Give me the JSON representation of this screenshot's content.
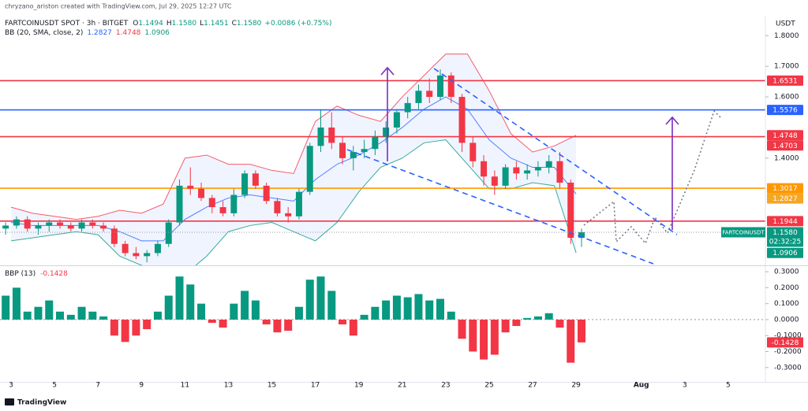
{
  "header": "chryzano_ariston created with TradingView.com, Jul 29, 2025 12:27 UTC",
  "footer": "TradingView",
  "chart_data": [
    {
      "type": "candlestick",
      "title": "FARTCOINUSDT SPOT · 3h · BITGET",
      "ohlc_legend": [
        [
          "O",
          "1.1494"
        ],
        [
          "H",
          "1.1580"
        ],
        [
          "L",
          "1.1451"
        ],
        [
          "C",
          "1.1580"
        ]
      ],
      "change": "+0.0086 (+0.75%)",
      "currency": "USDT",
      "up_color": "#089981",
      "down_color": "#f23645",
      "xlim": [
        2.49,
        37.71
      ],
      "xticks": [
        3,
        5,
        7,
        9,
        11,
        13,
        15,
        17,
        19,
        21,
        23,
        25,
        27,
        29,
        {
          "value": 32,
          "label": "Aug"
        },
        {
          "value": 34,
          "label": "3"
        },
        {
          "value": 36,
          "label": "5"
        }
      ],
      "ylim": [
        1.05,
        1.865
      ],
      "yticks": [
        {
          "value": 1.4,
          "label": "1.4000"
        },
        {
          "value": 1.6,
          "label": "1.6000"
        },
        {
          "value": 1.7,
          "label": "1.7000"
        },
        {
          "value": 1.8,
          "label": "1.8000"
        }
      ],
      "x": [
        2.75,
        3.25,
        3.75,
        4.25,
        4.75,
        5.25,
        5.75,
        6.25,
        6.75,
        7.25,
        7.75,
        8.25,
        8.75,
        9.25,
        9.75,
        10.25,
        10.75,
        11.25,
        11.75,
        12.25,
        12.75,
        13.25,
        13.75,
        14.25,
        14.75,
        15.25,
        15.75,
        16.25,
        16.75,
        17.25,
        17.75,
        18.25,
        18.75,
        19.25,
        19.75,
        20.25,
        20.75,
        21.25,
        21.75,
        22.25,
        22.75,
        23.25,
        23.75,
        24.25,
        24.75,
        25.25,
        25.75,
        26.25,
        26.75,
        27.25,
        27.75,
        28.25,
        28.75,
        29.25
      ],
      "open": [
        1.17,
        1.18,
        1.2,
        1.17,
        1.18,
        1.19,
        1.18,
        1.17,
        1.19,
        1.18,
        1.17,
        1.12,
        1.09,
        1.08,
        1.09,
        1.12,
        1.19,
        1.31,
        1.3,
        1.27,
        1.24,
        1.22,
        1.28,
        1.35,
        1.31,
        1.26,
        1.22,
        1.21,
        1.29,
        1.44,
        1.5,
        1.45,
        1.4,
        1.42,
        1.43,
        1.47,
        1.5,
        1.55,
        1.58,
        1.62,
        1.6,
        1.67,
        1.6,
        1.45,
        1.39,
        1.34,
        1.31,
        1.37,
        1.35,
        1.36,
        1.37,
        1.39,
        1.32,
        1.14
      ],
      "high": [
        1.19,
        1.21,
        1.21,
        1.19,
        1.2,
        1.2,
        1.19,
        1.2,
        1.2,
        1.19,
        1.18,
        1.13,
        1.11,
        1.1,
        1.13,
        1.2,
        1.33,
        1.37,
        1.32,
        1.28,
        1.26,
        1.3,
        1.36,
        1.36,
        1.32,
        1.27,
        1.24,
        1.3,
        1.45,
        1.56,
        1.55,
        1.47,
        1.44,
        1.46,
        1.49,
        1.52,
        1.56,
        1.6,
        1.64,
        1.66,
        1.69,
        1.68,
        1.61,
        1.47,
        1.41,
        1.36,
        1.38,
        1.39,
        1.38,
        1.39,
        1.41,
        1.42,
        1.33,
        1.17
      ],
      "low": [
        1.15,
        1.17,
        1.16,
        1.15,
        1.16,
        1.17,
        1.16,
        1.16,
        1.17,
        1.16,
        1.11,
        1.08,
        1.07,
        1.06,
        1.08,
        1.11,
        1.18,
        1.28,
        1.26,
        1.22,
        1.21,
        1.21,
        1.27,
        1.3,
        1.25,
        1.21,
        1.19,
        1.2,
        1.28,
        1.42,
        1.43,
        1.38,
        1.36,
        1.4,
        1.41,
        1.45,
        1.48,
        1.53,
        1.56,
        1.58,
        1.59,
        1.58,
        1.42,
        1.37,
        1.31,
        1.28,
        1.3,
        1.33,
        1.33,
        1.34,
        1.35,
        1.3,
        1.12,
        1.11
      ],
      "close": [
        1.18,
        1.2,
        1.17,
        1.18,
        1.19,
        1.18,
        1.17,
        1.19,
        1.18,
        1.17,
        1.12,
        1.09,
        1.08,
        1.09,
        1.12,
        1.19,
        1.31,
        1.3,
        1.27,
        1.24,
        1.22,
        1.28,
        1.35,
        1.31,
        1.26,
        1.22,
        1.21,
        1.29,
        1.44,
        1.5,
        1.45,
        1.4,
        1.42,
        1.43,
        1.47,
        1.5,
        1.55,
        1.58,
        1.62,
        1.6,
        1.67,
        1.6,
        1.45,
        1.39,
        1.34,
        1.31,
        1.37,
        1.35,
        1.36,
        1.37,
        1.39,
        1.32,
        1.14,
        1.158
      ],
      "bands": {
        "name": "BB (20, SMA, close, 2)",
        "x": [
          3,
          4,
          5,
          6,
          7,
          8,
          9,
          10,
          11,
          12,
          13,
          14,
          15,
          16,
          17,
          18,
          19,
          20,
          21,
          22,
          23,
          24,
          25,
          26,
          27,
          28,
          29
        ],
        "upper": [
          1.24,
          1.22,
          1.21,
          1.2,
          1.21,
          1.23,
          1.22,
          1.25,
          1.4,
          1.41,
          1.38,
          1.38,
          1.36,
          1.35,
          1.52,
          1.57,
          1.54,
          1.52,
          1.6,
          1.67,
          1.74,
          1.74,
          1.62,
          1.48,
          1.42,
          1.44,
          1.4748
        ],
        "middle": [
          1.19,
          1.18,
          1.18,
          1.18,
          1.18,
          1.16,
          1.13,
          1.13,
          1.2,
          1.24,
          1.27,
          1.28,
          1.27,
          1.26,
          1.33,
          1.38,
          1.41,
          1.45,
          1.5,
          1.56,
          1.6,
          1.56,
          1.46,
          1.4,
          1.37,
          1.37,
          1.2827
        ],
        "lower": [
          1.13,
          1.14,
          1.15,
          1.16,
          1.15,
          1.08,
          1.05,
          1.03,
          1.02,
          1.08,
          1.16,
          1.18,
          1.19,
          1.16,
          1.13,
          1.19,
          1.29,
          1.37,
          1.4,
          1.45,
          1.46,
          1.38,
          1.3,
          1.3,
          1.32,
          1.31,
          1.0906
        ],
        "upper_color": "#f23645",
        "middle_color": "#2962ff",
        "lower_color": "#089981",
        "fill": "#2962ff"
      },
      "tags": [
        {
          "value": 1.6531,
          "label": "1.6531",
          "color": "#f23645",
          "line": true
        },
        {
          "value": 1.5576,
          "label": "1.5576",
          "color": "#2962ff",
          "line": true
        },
        {
          "value": 1.4748,
          "label": "1.4748",
          "color": "#f23645",
          "line": false
        },
        {
          "value": 1.4703,
          "label": "1.4703",
          "color": "#f23645",
          "line": true
        },
        {
          "value": 1.3017,
          "label": "1.3017",
          "color": "#ff9800",
          "line": true
        },
        {
          "value": 1.2827,
          "label": "1.2827",
          "color": "#f5a623",
          "line": false
        },
        {
          "value": 1.1944,
          "label": "1.1944",
          "color": "#f23645",
          "line": true
        },
        {
          "value": 1.0906,
          "label": "1.0906",
          "color": "#089981",
          "line": false
        }
      ],
      "last": {
        "value": 1.158,
        "label": "1.1580",
        "symbol": "FARTCOINUSDT",
        "countdown": "02:32:25",
        "color": "#089981"
      }
    },
    {
      "type": "bar",
      "title": "BBP (13)",
      "pos_color": "#089981",
      "neg_color": "#f23645",
      "xlim": [
        2.49,
        37.71
      ],
      "ylim": [
        -0.39,
        0.335
      ],
      "yticks": [
        {
          "value": 0.3,
          "label": "0.3000"
        },
        {
          "value": 0.2,
          "label": "0.2000"
        },
        {
          "value": 0.1,
          "label": "0.1000"
        },
        {
          "value": 0,
          "label": "0.0000"
        },
        {
          "value": -0.1,
          "label": "-0.1000"
        },
        {
          "value": -0.2,
          "label": "-0.2000"
        },
        {
          "value": -0.3,
          "label": "-0.3000"
        }
      ],
      "x": [
        2.75,
        3.25,
        3.75,
        4.25,
        4.75,
        5.25,
        5.75,
        6.25,
        6.75,
        7.25,
        7.75,
        8.25,
        8.75,
        9.25,
        9.75,
        10.25,
        10.75,
        11.25,
        11.75,
        12.25,
        12.75,
        13.25,
        13.75,
        14.25,
        14.75,
        15.25,
        15.75,
        16.25,
        16.75,
        17.25,
        17.75,
        18.25,
        18.75,
        19.25,
        19.75,
        20.25,
        20.75,
        21.25,
        21.75,
        22.25,
        22.75,
        23.25,
        23.75,
        24.25,
        24.75,
        25.25,
        25.75,
        26.25,
        26.75,
        27.25,
        27.75,
        28.25,
        28.75,
        29.25
      ],
      "values": [
        0.15,
        0.2,
        0.05,
        0.08,
        0.12,
        0.05,
        0.03,
        0.08,
        0.05,
        0.02,
        -0.1,
        -0.14,
        -0.1,
        -0.06,
        0.05,
        0.15,
        0.27,
        0.22,
        0.1,
        -0.02,
        -0.05,
        0.1,
        0.18,
        0.12,
        -0.03,
        -0.08,
        -0.07,
        0.08,
        0.25,
        0.27,
        0.18,
        -0.03,
        -0.1,
        0.03,
        0.08,
        0.12,
        0.15,
        0.14,
        0.16,
        0.12,
        0.13,
        0.05,
        -0.12,
        -0.2,
        -0.25,
        -0.22,
        -0.08,
        -0.04,
        0.01,
        0.02,
        0.04,
        -0.05,
        -0.27,
        -0.1428
      ],
      "last": {
        "value": -0.1428,
        "label": "-0.1428",
        "color": "#f23645"
      }
    }
  ]
}
